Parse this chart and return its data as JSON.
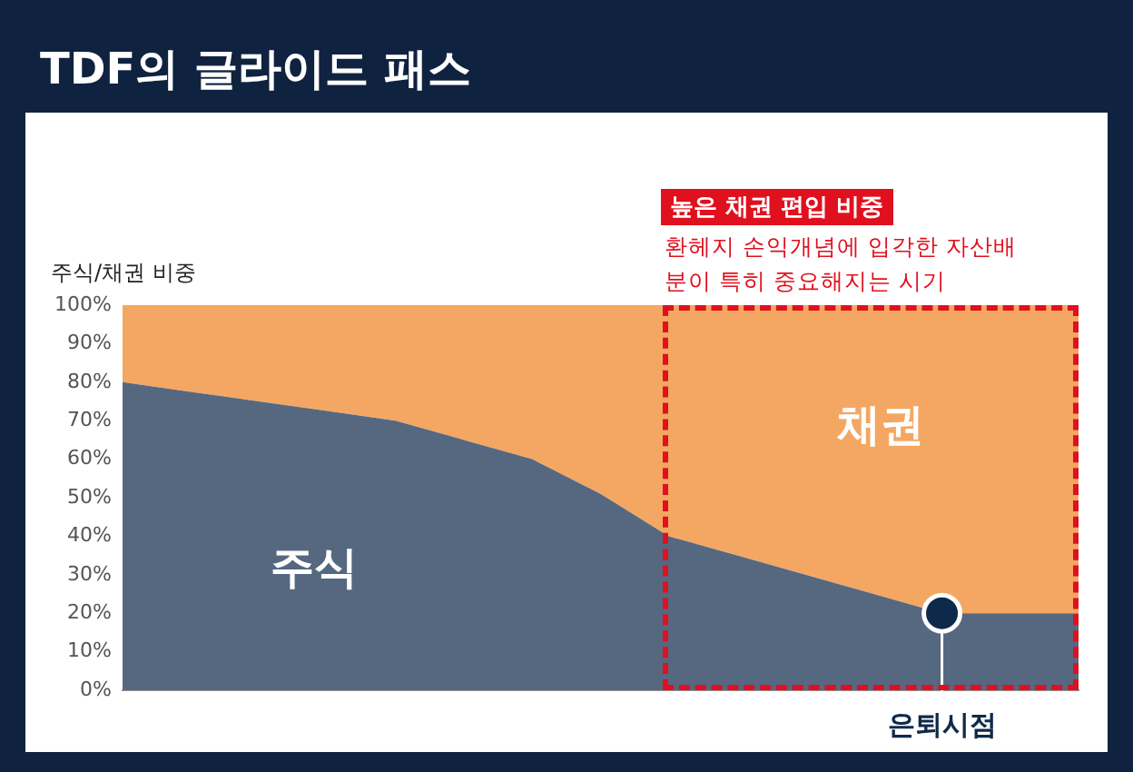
{
  "chart_data": {
    "type": "area",
    "title": "TDF의 글라이드 패스",
    "ylabel": "주식/채권 비중",
    "stacked": true,
    "legend": false,
    "grid": false,
    "categories": [
      null,
      null,
      null,
      null,
      null,
      null,
      null,
      null,
      null,
      null,
      null,
      null,
      null,
      null,
      null
    ],
    "series": [
      {
        "name": "주식",
        "color": "#56687f",
        "values": [
          80,
          77.5,
          75,
          72.5,
          70,
          65,
          60,
          51,
          40,
          35,
          30,
          25,
          20,
          20,
          20
        ]
      },
      {
        "name": "채권",
        "color": "#f4a762",
        "values": [
          20,
          22.5,
          25,
          27.5,
          30,
          35,
          40,
          49,
          60,
          65,
          70,
          75,
          80,
          80,
          80
        ]
      }
    ],
    "ylim": [
      0,
      100
    ],
    "yticks": [
      {
        "value": 0,
        "label": "0%"
      },
      {
        "value": 10,
        "label": "10%"
      },
      {
        "value": 20,
        "label": "20%"
      },
      {
        "value": 30,
        "label": "30%"
      },
      {
        "value": 40,
        "label": "40%"
      },
      {
        "value": 50,
        "label": "50%"
      },
      {
        "value": 60,
        "label": "60%"
      },
      {
        "value": 70,
        "label": "70%"
      },
      {
        "value": 80,
        "label": "80%"
      },
      {
        "value": 90,
        "label": "90%"
      },
      {
        "value": 100,
        "label": "100%"
      }
    ],
    "annotations": [
      "높은 채권 편입 비중",
      "환헤지 손익개념에 입각한 자산배분이 특히 중요해지는 시기",
      {
        "text": "은퇴시점",
        "y": 20
      }
    ]
  }
}
